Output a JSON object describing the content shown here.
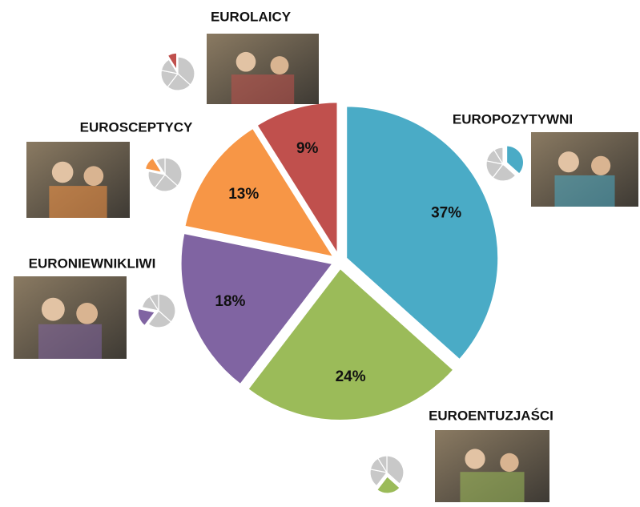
{
  "chart_data": {
    "type": "pie",
    "categories": [
      "EUROPOZYTYWNI",
      "EUROENTUZJAŚCI",
      "EURONIEWNIKLIWI",
      "EUROSCEPTYCY",
      "EUROLAICY"
    ],
    "values": [
      37,
      24,
      18,
      13,
      9
    ],
    "value_labels": [
      "37%",
      "24%",
      "18%",
      "13%",
      "9%"
    ],
    "colors": [
      "#4aabc6",
      "#9bbb59",
      "#8064a2",
      "#f79646",
      "#c0504d"
    ]
  }
}
